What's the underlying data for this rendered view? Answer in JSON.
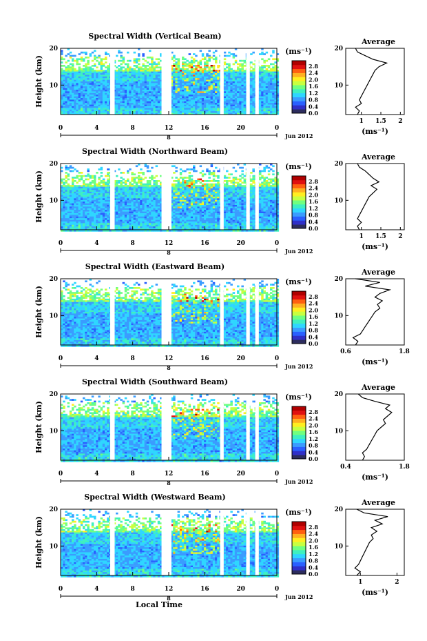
{
  "footer_label": "Local Time",
  "colorbar": {
    "unit_label": "(ms⁻¹)",
    "ticks": [
      "2.8",
      "2.4",
      "2.0",
      "1.6",
      "1.2",
      "0.8",
      "0.4",
      "0.0"
    ],
    "colors": [
      "#2d2d5e",
      "#3030c8",
      "#2a60ff",
      "#3a9cff",
      "#2fd6ff",
      "#3ff0c0",
      "#70ff80",
      "#c8ff40",
      "#ffee20",
      "#ffb020",
      "#ff6010",
      "#e01010",
      "#b00000"
    ]
  },
  "chart_data": [
    {
      "type": "heatmap",
      "title": "Spectral Width (Vertical Beam)",
      "ylabel": "Height (km)",
      "yticks": [
        "20",
        "10"
      ],
      "ylim": [
        2,
        20
      ],
      "xticks": [
        "0",
        "4",
        "8",
        "12",
        "16",
        "20",
        "0"
      ],
      "xlim": [
        0,
        24
      ],
      "date_marker": "8",
      "date_label": "Jun 2012",
      "gaps": [
        [
          5.5,
          6.0
        ],
        [
          11.2,
          12.3
        ],
        [
          17.7,
          18.1
        ],
        [
          20.6,
          21.0
        ],
        [
          21.6,
          22.0
        ]
      ],
      "profile": {
        "title": "Average",
        "xticks": [
          "1",
          "1.5",
          "2"
        ],
        "xlim": [
          0.6,
          2.1
        ],
        "xlabel": "(ms⁻¹)",
        "heights": [
          2,
          3,
          4,
          5,
          6,
          7,
          8,
          9,
          10,
          11,
          12,
          13,
          14,
          15,
          16,
          17,
          18,
          19,
          20
        ],
        "values": [
          0.9,
          0.95,
          0.85,
          1.0,
          0.95,
          1.0,
          1.05,
          1.1,
          1.15,
          1.2,
          1.25,
          1.3,
          1.35,
          1.45,
          1.65,
          1.3,
          1.1,
          0.9,
          0.85
        ]
      }
    },
    {
      "type": "heatmap",
      "title": "Spectral Width (Northward Beam)",
      "ylabel": "Height (km)",
      "yticks": [
        "20",
        "10"
      ],
      "ylim": [
        2,
        20
      ],
      "xticks": [
        "0",
        "4",
        "8",
        "12",
        "16",
        "20",
        "0"
      ],
      "xlim": [
        0,
        24
      ],
      "date_marker": "8",
      "date_label": "Jun 2012",
      "gaps": [
        [
          5.5,
          6.0
        ],
        [
          11.2,
          12.3
        ],
        [
          17.7,
          18.1
        ],
        [
          20.6,
          21.0
        ],
        [
          21.6,
          22.0
        ]
      ],
      "profile": {
        "title": "Average",
        "xticks": [
          "1",
          "1.5",
          "2"
        ],
        "xlim": [
          0.6,
          2.1
        ],
        "xlabel": "(ms⁻¹)",
        "heights": [
          2,
          3,
          4,
          5,
          6,
          7,
          8,
          9,
          10,
          11,
          12,
          13,
          14,
          15,
          16,
          17,
          18,
          19,
          20
        ],
        "values": [
          0.95,
          0.9,
          1.0,
          0.9,
          0.95,
          1.0,
          1.05,
          1.1,
          1.15,
          1.2,
          1.3,
          1.4,
          1.25,
          1.45,
          1.3,
          1.2,
          1.1,
          0.95,
          0.9
        ]
      }
    },
    {
      "type": "heatmap",
      "title": "Spectral Width (Eastward Beam)",
      "ylabel": "Height (km)",
      "yticks": [
        "20",
        "10"
      ],
      "ylim": [
        2,
        20
      ],
      "xticks": [
        "0",
        "4",
        "8",
        "12",
        "16",
        "20",
        "0"
      ],
      "xlim": [
        0,
        24
      ],
      "date_marker": "8",
      "date_label": "Jun 2012",
      "gaps": [
        [
          5.5,
          6.0
        ],
        [
          11.2,
          12.3
        ],
        [
          17.7,
          18.1
        ],
        [
          20.6,
          21.0
        ],
        [
          21.6,
          22.0
        ]
      ],
      "profile": {
        "title": "Average",
        "xticks": [
          "0.6",
          "1.8"
        ],
        "xlim": [
          0.6,
          1.8
        ],
        "xlabel": "(ms⁻¹)",
        "heights": [
          2,
          3,
          4,
          5,
          6,
          7,
          8,
          9,
          10,
          11,
          12,
          13,
          14,
          15,
          16,
          17,
          18,
          19,
          20
        ],
        "values": [
          0.8,
          0.85,
          0.75,
          0.9,
          0.95,
          1.0,
          1.05,
          1.1,
          1.15,
          1.2,
          1.3,
          1.25,
          1.35,
          1.2,
          1.3,
          1.5,
          1.0,
          1.3,
          0.8
        ]
      }
    },
    {
      "type": "heatmap",
      "title": "Spectral Width (Southward Beam)",
      "ylabel": "Height (km)",
      "yticks": [
        "20",
        "10"
      ],
      "ylim": [
        2,
        20
      ],
      "xticks": [
        "0",
        "4",
        "8",
        "12",
        "16",
        "20",
        "0"
      ],
      "xlim": [
        0,
        24
      ],
      "date_marker": "8",
      "date_label": "Jun 2012",
      "gaps": [
        [
          5.5,
          6.0
        ],
        [
          11.2,
          12.3
        ],
        [
          17.7,
          18.1
        ],
        [
          20.6,
          21.0
        ],
        [
          21.6,
          22.0
        ]
      ],
      "profile": {
        "title": "Average",
        "xticks": [
          "0.4",
          "1.8"
        ],
        "xlim": [
          0.4,
          1.8
        ],
        "xlabel": "(ms⁻¹)",
        "heights": [
          2,
          3,
          4,
          5,
          6,
          7,
          8,
          9,
          10,
          11,
          12,
          13,
          14,
          15,
          16,
          17,
          18,
          19,
          20
        ],
        "values": [
          0.8,
          0.85,
          0.8,
          0.9,
          0.95,
          1.0,
          1.05,
          1.1,
          1.15,
          1.25,
          1.35,
          1.3,
          1.4,
          1.5,
          1.35,
          1.45,
          1.1,
          0.8,
          0.7
        ]
      }
    },
    {
      "type": "heatmap",
      "title": "Spectral Width (Westward Beam)",
      "ylabel": "Height (km)",
      "yticks": [
        "20",
        "10"
      ],
      "ylim": [
        2,
        20
      ],
      "xticks": [
        "0",
        "4",
        "8",
        "12",
        "16",
        "20",
        "0"
      ],
      "xlim": [
        0,
        24
      ],
      "date_marker": "8",
      "date_label": "Jun 2012",
      "gaps": [
        [
          5.5,
          6.0
        ],
        [
          11.2,
          12.3
        ],
        [
          17.7,
          18.1
        ],
        [
          20.6,
          21.0
        ],
        [
          21.6,
          22.0
        ]
      ],
      "profile": {
        "title": "Average",
        "xticks": [
          "1",
          "2"
        ],
        "xlim": [
          0.6,
          2.2
        ],
        "xlabel": "(ms⁻¹)",
        "heights": [
          2,
          3,
          4,
          5,
          6,
          7,
          8,
          9,
          10,
          11,
          12,
          13,
          14,
          15,
          16,
          17,
          18,
          19,
          20
        ],
        "values": [
          0.9,
          1.0,
          0.85,
          0.95,
          1.0,
          1.05,
          1.1,
          1.15,
          1.2,
          1.25,
          1.35,
          1.3,
          1.45,
          1.3,
          1.6,
          1.4,
          1.75,
          1.1,
          0.9
        ]
      }
    }
  ]
}
